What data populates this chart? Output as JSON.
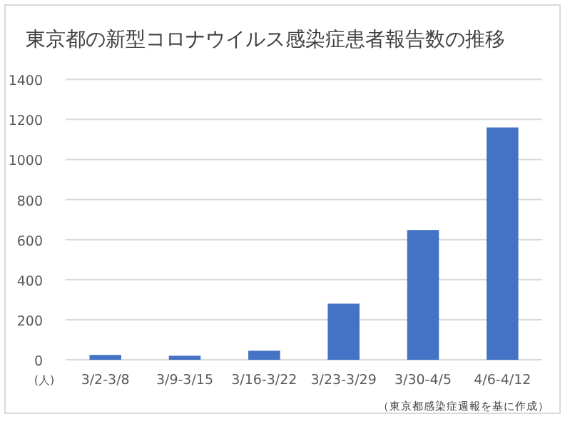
{
  "chart_data": {
    "type": "bar",
    "title": "東京都の新型コロナウイルス感染症患者報告数の推移",
    "ylabel": "(人)",
    "categories": [
      "3/2-3/8",
      "3/9-3/15",
      "3/16-3/22",
      "3/23-3/29",
      "3/30-4/5",
      "4/6-4/12"
    ],
    "values": [
      24,
      20,
      45,
      280,
      648,
      1160
    ],
    "color": "#4472c4",
    "ylim": [
      0,
      1400
    ],
    "yticks": [
      0,
      200,
      400,
      600,
      800,
      1000,
      1200,
      1400
    ],
    "grid": "y",
    "annotations": [
      "（東京都感染症週報を基に作成）"
    ]
  }
}
